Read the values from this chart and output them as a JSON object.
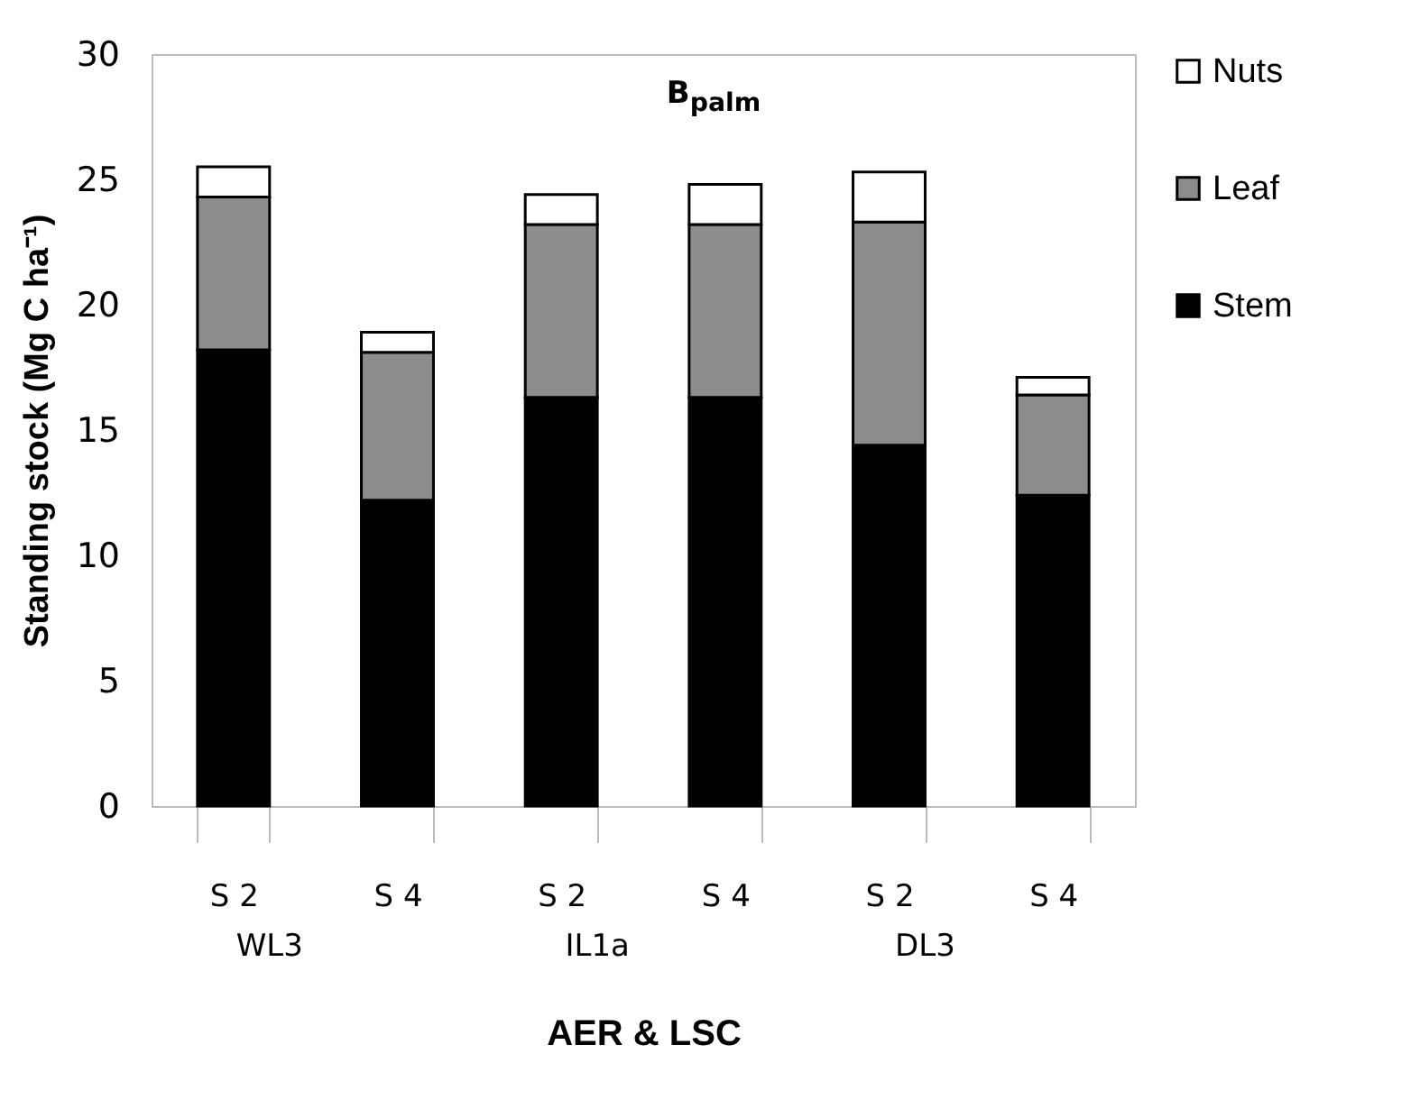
{
  "chart_data": {
    "type": "bar",
    "title": "B$_{palm}$",
    "xlabel": "AER & LSC",
    "ylabel": "Standing stock (Mg C ha⁻¹)",
    "categories": [
      "S 2",
      "S 4",
      "S 2",
      "S 4",
      "S 2",
      "S 4"
    ],
    "annotations": [
      "WL3",
      "IL1a",
      "DL3"
    ],
    "stacked": true,
    "series": [
      {
        "name": "Stem",
        "color": "#000000",
        "values": [
          18.2,
          12.2,
          16.3,
          16.3,
          14.4,
          12.4
        ]
      },
      {
        "name": "Leaf",
        "color": "#8c8c8c",
        "values": [
          6.1,
          5.9,
          6.9,
          6.9,
          8.9,
          4.0
        ]
      },
      {
        "name": "Nuts",
        "color": "#ffffff",
        "values": [
          1.2,
          0.8,
          1.2,
          1.6,
          2.0,
          0.7
        ]
      }
    ],
    "ylim": [
      0,
      30
    ],
    "yticks": [
      0,
      5,
      10,
      15,
      20,
      25,
      30
    ],
    "grid": false,
    "legend": "right"
  }
}
